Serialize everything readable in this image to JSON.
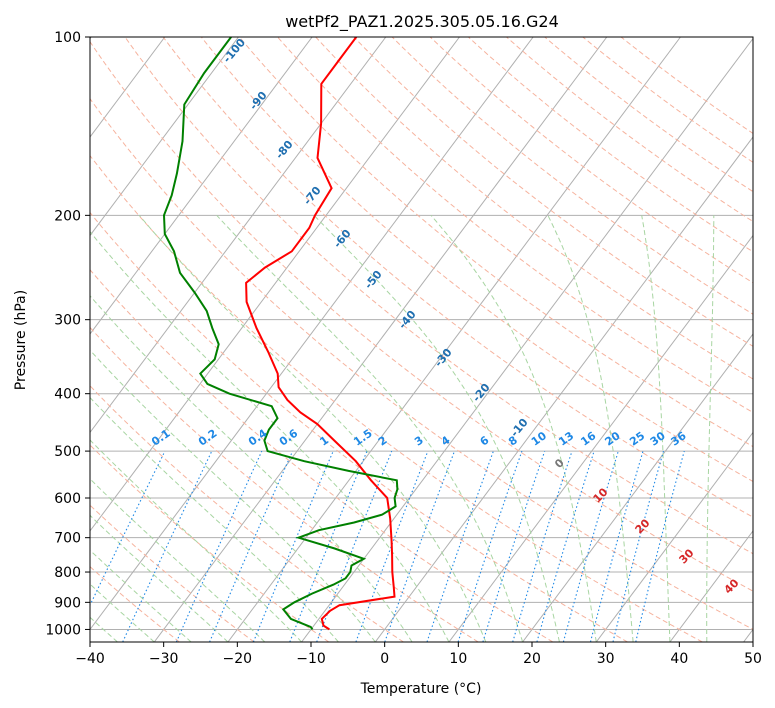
{
  "chart_data": {
    "type": "line",
    "title": "wetPf2_PAZ1.2025.305.05.16.G24",
    "xlabel": "Temperature (°C)",
    "ylabel": "Pressure (hPa)",
    "xlim": [
      -40,
      50
    ],
    "ylim": [
      1050,
      100
    ],
    "y_scale": "log",
    "skew": true,
    "grid": true,
    "x_ticks": [
      -40,
      -30,
      -20,
      -10,
      0,
      10,
      20,
      30,
      40,
      50
    ],
    "y_ticks": [
      1000,
      900,
      800,
      700,
      600,
      500,
      400,
      300,
      200,
      100
    ],
    "series": [
      {
        "color": "#ff0000",
        "points": [
          [
            1000,
            -7.5
          ],
          [
            985,
            -8.7
          ],
          [
            960,
            -9.6
          ],
          [
            930,
            -9.3
          ],
          [
            910,
            -8.6
          ],
          [
            880,
            -2.0
          ],
          [
            850,
            -3.0
          ],
          [
            800,
            -4.8
          ],
          [
            750,
            -6.5
          ],
          [
            710,
            -8.0
          ],
          [
            650,
            -10.5
          ],
          [
            600,
            -13.0
          ],
          [
            560,
            -17.0
          ],
          [
            520,
            -21.0
          ],
          [
            480,
            -26.0
          ],
          [
            450,
            -30.0
          ],
          [
            430,
            -33.5
          ],
          [
            410,
            -36.5
          ],
          [
            390,
            -39.0
          ],
          [
            370,
            -40.5
          ],
          [
            340,
            -44.0
          ],
          [
            310,
            -48.0
          ],
          [
            280,
            -52.0
          ],
          [
            260,
            -54.0
          ],
          [
            245,
            -53.0
          ],
          [
            230,
            -51.0
          ],
          [
            210,
            -51.0
          ],
          [
            200,
            -51.5
          ],
          [
            180,
            -52.0
          ],
          [
            160,
            -57.0
          ],
          [
            140,
            -60.0
          ],
          [
            120,
            -64.0
          ],
          [
            110,
            -64.0
          ],
          [
            100,
            -64.0
          ]
        ]
      },
      {
        "color": "#008000",
        "points": [
          [
            1000,
            -9.8
          ],
          [
            990,
            -10.3
          ],
          [
            960,
            -13.8
          ],
          [
            925,
            -15.8
          ],
          [
            900,
            -15.0
          ],
          [
            870,
            -13.5
          ],
          [
            840,
            -11.5
          ],
          [
            820,
            -10.5
          ],
          [
            800,
            -10.5
          ],
          [
            780,
            -11.0
          ],
          [
            760,
            -10.0
          ],
          [
            730,
            -15.0
          ],
          [
            700,
            -21.0
          ],
          [
            680,
            -19.0
          ],
          [
            660,
            -15.0
          ],
          [
            640,
            -12.0
          ],
          [
            620,
            -11.0
          ],
          [
            600,
            -12.0
          ],
          [
            580,
            -12.5
          ],
          [
            560,
            -13.5
          ],
          [
            540,
            -21.0
          ],
          [
            520,
            -28.0
          ],
          [
            500,
            -34.0
          ],
          [
            480,
            -35.5
          ],
          [
            460,
            -36.0
          ],
          [
            440,
            -36.0
          ],
          [
            420,
            -38.0
          ],
          [
            400,
            -45.0
          ],
          [
            385,
            -49.0
          ],
          [
            370,
            -51.0
          ],
          [
            350,
            -50.5
          ],
          [
            330,
            -51.5
          ],
          [
            310,
            -54.0
          ],
          [
            290,
            -56.5
          ],
          [
            270,
            -60.0
          ],
          [
            250,
            -64.0
          ],
          [
            230,
            -67.0
          ],
          [
            215,
            -70.0
          ],
          [
            200,
            -72.0
          ],
          [
            185,
            -73.0
          ],
          [
            170,
            -74.5
          ],
          [
            150,
            -77.0
          ],
          [
            130,
            -80.5
          ],
          [
            115,
            -81.0
          ],
          [
            100,
            -81.0
          ]
        ]
      }
    ],
    "dry_adiabat_labels": [
      "-100",
      "-90",
      "-80",
      "-70",
      "-60",
      "-50",
      "-40",
      "-30",
      "-20",
      "-10"
    ],
    "moist_adiabat_labels": [
      "0",
      "10",
      "20",
      "30",
      "40"
    ],
    "mixing_ratio_labels": [
      "0.1",
      "0.2",
      "0.4",
      "0.6",
      "1",
      "1.5",
      "2",
      "3",
      "4",
      "6",
      "8",
      "10",
      "13",
      "16",
      "20",
      "25",
      "30",
      "36"
    ]
  }
}
